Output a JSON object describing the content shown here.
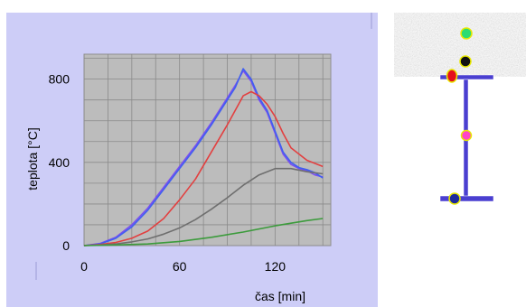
{
  "chart_data": {
    "type": "line",
    "xlabel": "čas [min]",
    "ylabel": "teplota [°C]",
    "xlim": [
      0,
      155
    ],
    "ylim": [
      0,
      920
    ],
    "x_ticks": [
      "0",
      "60",
      "120"
    ],
    "y_ticks": [
      "0",
      "400",
      "800"
    ],
    "grid": true,
    "series": [
      {
        "color": "#7a4df0",
        "x": [
          0,
          10,
          20,
          30,
          40,
          50,
          60,
          70,
          80,
          90,
          95,
          100,
          105,
          110,
          115,
          120,
          125,
          130,
          135,
          140,
          145,
          150
        ],
        "y": [
          0,
          10,
          40,
          100,
          180,
          280,
          380,
          480,
          590,
          710,
          770,
          840,
          790,
          700,
          640,
          540,
          440,
          390,
          370,
          360,
          340,
          330
        ]
      },
      {
        "color": "#3f5ff0",
        "x": [
          0,
          10,
          20,
          30,
          40,
          50,
          60,
          70,
          80,
          90,
          95,
          100,
          105,
          110,
          115,
          120,
          125,
          130,
          135,
          140,
          145,
          150
        ],
        "y": [
          0,
          8,
          35,
          90,
          170,
          270,
          370,
          470,
          580,
          700,
          760,
          850,
          800,
          710,
          650,
          550,
          450,
          400,
          375,
          365,
          350,
          325
        ]
      },
      {
        "color": "#e24040",
        "x": [
          0,
          10,
          20,
          30,
          40,
          50,
          60,
          70,
          80,
          90,
          100,
          105,
          110,
          115,
          120,
          125,
          130,
          140,
          150
        ],
        "y": [
          0,
          5,
          15,
          35,
          70,
          130,
          220,
          320,
          450,
          580,
          720,
          740,
          720,
          680,
          620,
          540,
          470,
          410,
          380
        ]
      },
      {
        "color": "#6f6f6f",
        "x": [
          0,
          10,
          20,
          30,
          40,
          50,
          60,
          70,
          80,
          90,
          100,
          110,
          120,
          130,
          140,
          150
        ],
        "y": [
          0,
          3,
          8,
          18,
          32,
          55,
          85,
          125,
          175,
          230,
          290,
          340,
          370,
          370,
          355,
          345
        ]
      },
      {
        "color": "#3c9b3c",
        "x": [
          0,
          20,
          40,
          60,
          80,
          100,
          120,
          140,
          150
        ],
        "y": [
          0,
          3,
          8,
          20,
          40,
          65,
          95,
          120,
          130
        ]
      }
    ]
  },
  "cross_section": {
    "dot_colors": [
      "#2bdc72",
      "#111111",
      "#e4101c",
      "#ff44c8",
      "#1d2a9c"
    ],
    "steel_color": "#4a3fd0",
    "slab_color": "#bdbdbd"
  }
}
